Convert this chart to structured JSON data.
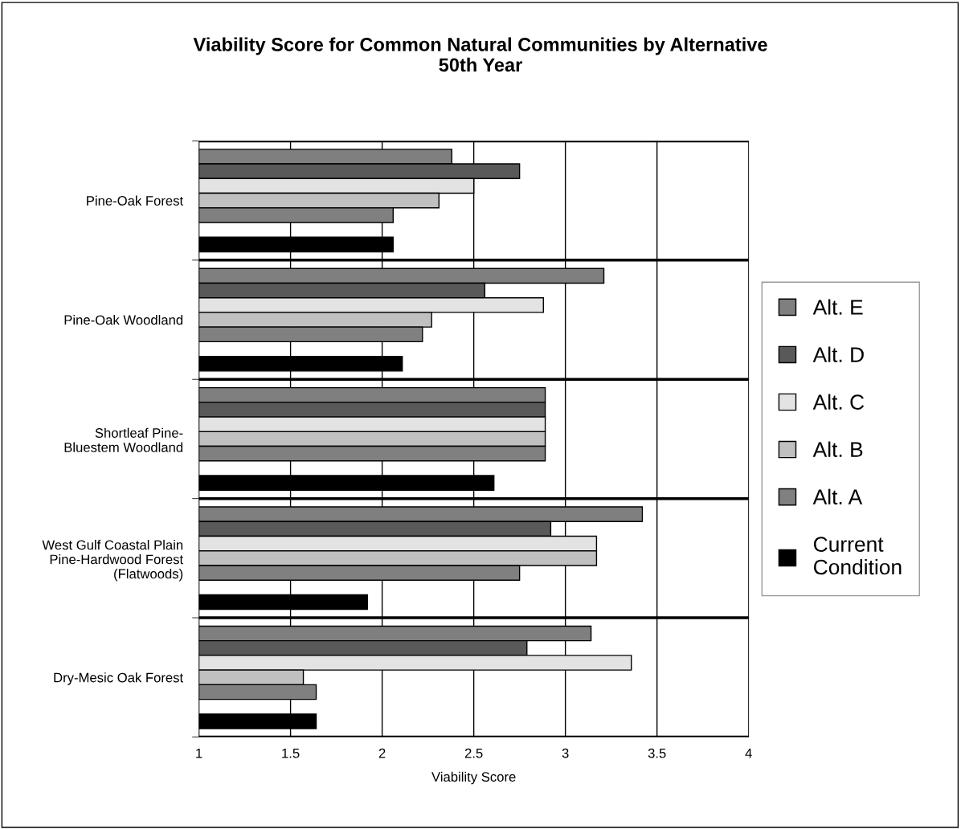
{
  "chart_data": {
    "type": "bar",
    "orientation": "horizontal",
    "title": "Viability Score for Common Natural Communities by Alternative\n50th Year",
    "xlabel": "Viability Score",
    "categories": [
      "Pine-Oak Forest",
      "Pine-Oak Woodland",
      "Shortleaf Pine-\nBluestem Woodland",
      "West Gulf Coastal Plain\nPine-Hardwood Forest\n(Flatwoods)",
      "Dry-Mesic Oak Forest"
    ],
    "series": [
      {
        "name": "Alt. E",
        "color": "#7f7f7f",
        "values": [
          2.38,
          3.21,
          2.89,
          3.42,
          3.14
        ]
      },
      {
        "name": "Alt. D",
        "color": "#595959",
        "values": [
          2.75,
          2.56,
          2.89,
          2.92,
          2.79
        ]
      },
      {
        "name": "Alt. C",
        "color": "#e3e3e3",
        "values": [
          2.5,
          2.88,
          2.89,
          3.17,
          3.36
        ]
      },
      {
        "name": "Alt. B",
        "color": "#c0c0c0",
        "values": [
          2.31,
          2.27,
          2.89,
          3.17,
          1.57
        ]
      },
      {
        "name": "Alt. A",
        "color": "#808080",
        "values": [
          2.06,
          2.22,
          2.89,
          2.75,
          1.64
        ]
      },
      {
        "name": "Current Condition",
        "color": "#000000",
        "values": [
          2.06,
          2.11,
          2.61,
          1.92,
          1.64
        ]
      }
    ],
    "xlim": [
      1,
      4
    ],
    "xticks": [
      1,
      1.5,
      2,
      2.5,
      3,
      3.5,
      4
    ],
    "grid": true,
    "legend": "right"
  }
}
